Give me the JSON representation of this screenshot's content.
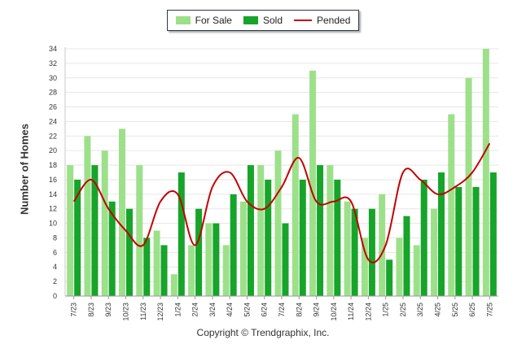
{
  "legend": {
    "items": [
      {
        "label": "For Sale",
        "color": "#9de08a",
        "kind": "bar"
      },
      {
        "label": "Sold",
        "color": "#17a42a",
        "kind": "bar"
      },
      {
        "label": "Pended",
        "color": "#c40000",
        "kind": "line"
      }
    ]
  },
  "footer": {
    "copyright": "Copyright © Trendgraphix, Inc."
  },
  "chart_data": {
    "type": "bar",
    "ylabel": "Number of Homes",
    "xlabel": "",
    "ylim": [
      0,
      34
    ],
    "yticks": [
      0,
      2,
      4,
      6,
      8,
      10,
      12,
      14,
      16,
      18,
      20,
      22,
      24,
      26,
      28,
      30,
      32,
      34
    ],
    "grid": true,
    "legend_position": "top",
    "categories": [
      "7/23",
      "8/23",
      "9/23",
      "10/23",
      "11/23",
      "12/23",
      "1/24",
      "2/24",
      "3/24",
      "4/24",
      "5/24",
      "6/24",
      "7/24",
      "8/24",
      "9/24",
      "10/24",
      "11/24",
      "12/24",
      "1/25",
      "2/25",
      "3/25",
      "4/25",
      "5/25",
      "6/25",
      "7/25"
    ],
    "series": [
      {
        "name": "For Sale",
        "type": "bar",
        "color": "#9de08a",
        "values": [
          18,
          22,
          20,
          23,
          18,
          9,
          3,
          7,
          10,
          7,
          13,
          18,
          20,
          25,
          31,
          18,
          13,
          8,
          14,
          8,
          7,
          12,
          25,
          30,
          34
        ]
      },
      {
        "name": "Sold",
        "type": "bar",
        "color": "#17a42a",
        "values": [
          16,
          18,
          13,
          12,
          8,
          7,
          17,
          12,
          10,
          14,
          18,
          16,
          10,
          16,
          18,
          16,
          12,
          12,
          5,
          11,
          16,
          17,
          15,
          15,
          17
        ]
      },
      {
        "name": "Pended",
        "type": "line",
        "color": "#c40000",
        "values": [
          13,
          16,
          12,
          9,
          7,
          13,
          14,
          7,
          15,
          17,
          13,
          12,
          15,
          19,
          13,
          13,
          13,
          5,
          7,
          17,
          16,
          14,
          15,
          17,
          21
        ]
      }
    ]
  }
}
